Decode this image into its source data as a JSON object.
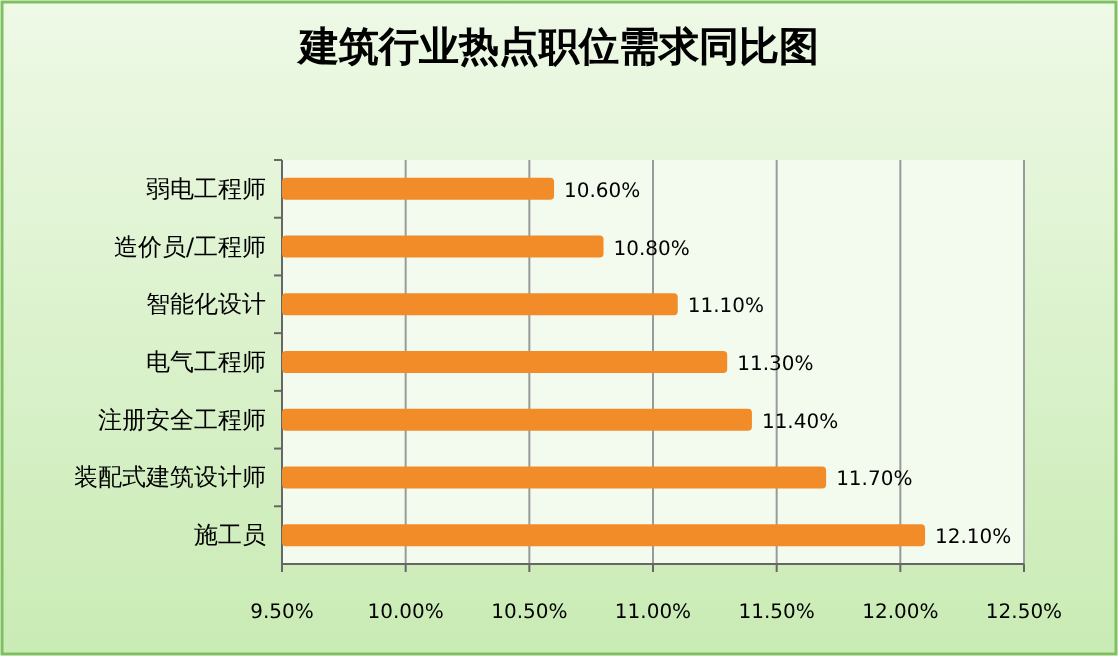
{
  "chart_data": {
    "type": "bar",
    "orientation": "horizontal",
    "title": "建筑行业热点职位需求同比图",
    "categories": [
      "弱电工程师",
      "造价员/工程师",
      "智能化设计",
      "电气工程师",
      "注册安全工程师",
      "装配式建筑设计师",
      "施工员"
    ],
    "values": [
      10.6,
      10.8,
      11.1,
      11.3,
      11.4,
      11.7,
      12.1
    ],
    "value_labels": [
      "10.60%",
      "10.80%",
      "11.10%",
      "11.30%",
      "11.40%",
      "11.70%",
      "12.10%"
    ],
    "color": "#f28c28",
    "xlim": [
      9.5,
      12.5
    ],
    "xticks": [
      {
        "value": 9.5,
        "label": "9.50%"
      },
      {
        "value": 10,
        "label": "10.00%"
      },
      {
        "value": 10.5,
        "label": "10.50%"
      },
      {
        "value": 11,
        "label": "11.00%"
      },
      {
        "value": 11.5,
        "label": "11.50%"
      },
      {
        "value": 12,
        "label": "12.00%"
      },
      {
        "value": 12.5,
        "label": "12.50%"
      }
    ],
    "grid": "x"
  }
}
